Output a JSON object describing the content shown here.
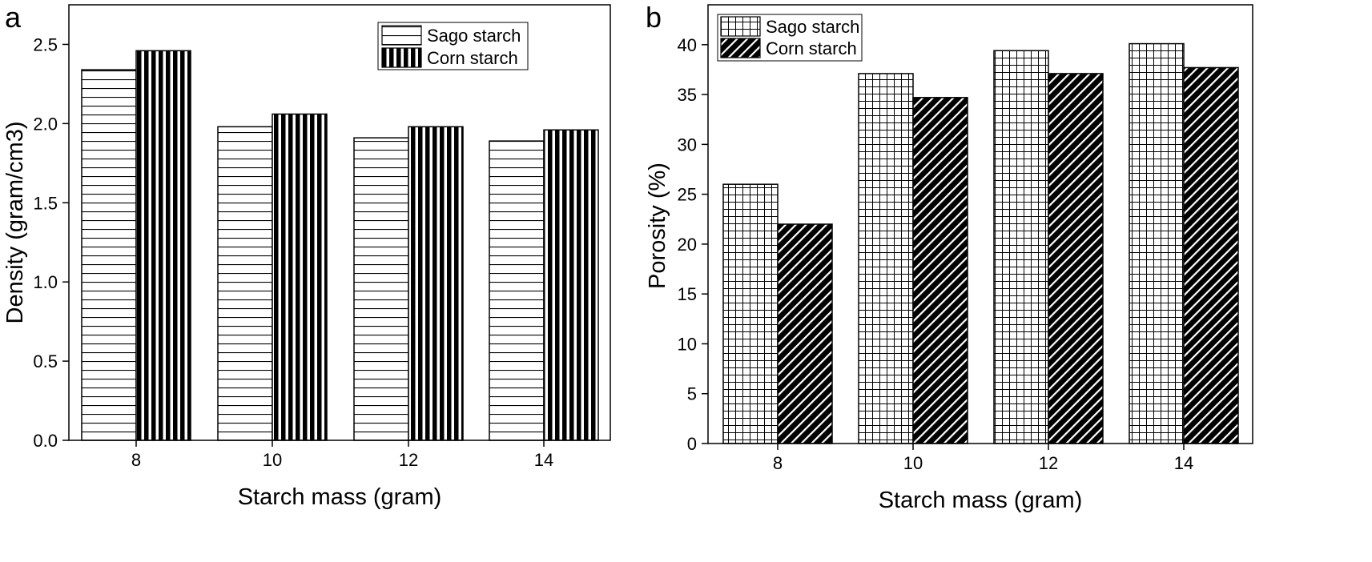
{
  "chart_data": [
    {
      "panel": "a",
      "type": "bar",
      "categories": [
        "8",
        "10",
        "12",
        "14"
      ],
      "series": [
        {
          "name": "Sago starch",
          "values": [
            2.34,
            1.98,
            1.91,
            1.89
          ],
          "pattern": "horizontal-lines",
          "fill": "#ffffff"
        },
        {
          "name": "Corn starch",
          "values": [
            2.46,
            2.06,
            1.98,
            1.96
          ],
          "pattern": "vertical-lines",
          "fill": "#000000"
        }
      ],
      "xlabel": "Starch mass (gram)",
      "ylabel": "Density (gram/cm3)",
      "ylim": [
        0,
        2.75
      ],
      "yticks": [
        "0.0",
        "0.5",
        "1.0",
        "1.5",
        "2.0",
        "2.5"
      ],
      "legend_position": "top-right",
      "grid": false
    },
    {
      "panel": "b",
      "type": "bar",
      "categories": [
        "8",
        "10",
        "12",
        "14"
      ],
      "series": [
        {
          "name": "Sago starch",
          "values": [
            26,
            37.1,
            39.4,
            40.1
          ],
          "pattern": "grid",
          "fill": "#ffffff"
        },
        {
          "name": "Corn starch",
          "values": [
            22,
            34.7,
            37.1,
            37.7
          ],
          "pattern": "diagonal-lines",
          "fill": "#000000"
        }
      ],
      "xlabel": "Starch mass (gram)",
      "ylabel": "Porosity (%)",
      "ylim": [
        0,
        44
      ],
      "yticks": [
        "0",
        "5",
        "10",
        "15",
        "20",
        "25",
        "30",
        "35",
        "40"
      ],
      "legend_position": "top-left",
      "grid": false
    }
  ]
}
